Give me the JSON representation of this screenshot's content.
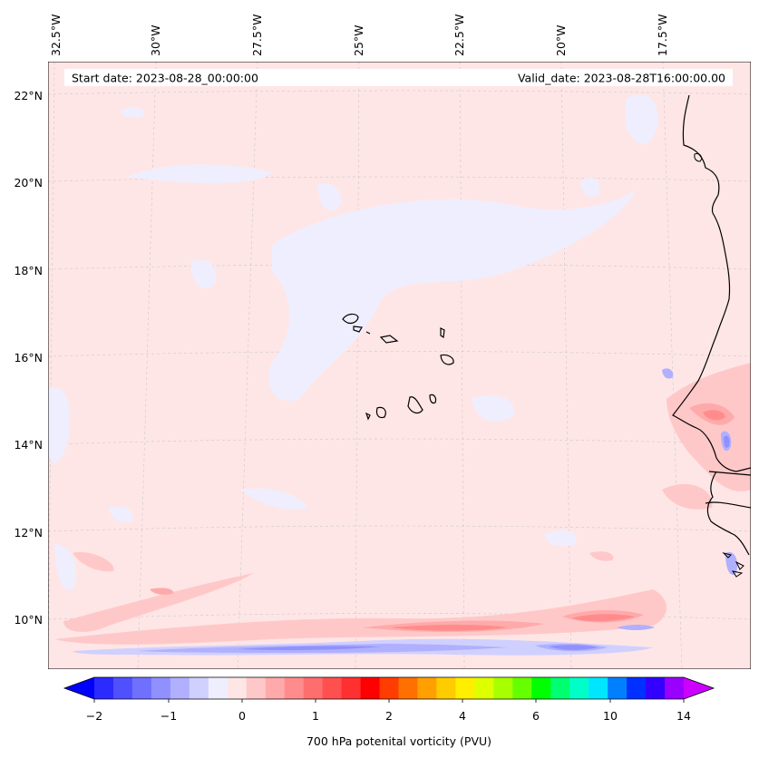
{
  "map": {
    "start_date": "Start date: 2023-08-28_00:00:00",
    "valid_date": "Valid_date: 2023-08-28T16:00:00.00",
    "lon_labels": [
      "32.5°W",
      "30°W",
      "27.5°W",
      "25°W",
      "22.5°W",
      "20°W",
      "17.5°W"
    ],
    "lat_labels": [
      "22°N",
      "20°N",
      "18°N",
      "16°N",
      "14°N",
      "12°N",
      "10°N"
    ],
    "background_color": "#ffe6e6",
    "low_pv_color": "#eeeeff",
    "coastline_color": "#000000"
  },
  "colorbar": {
    "label": "700 hPa potenital vorticity (PVU)",
    "tick_labels": [
      "−2",
      "−1",
      "0",
      "1",
      "2",
      "4",
      "6",
      "10",
      "14"
    ],
    "colors": [
      "#0000ff",
      "#2b2bff",
      "#5050ff",
      "#7070ff",
      "#9090ff",
      "#b0b0ff",
      "#d0d0ff",
      "#eeeeff",
      "#ffe6e6",
      "#ffc8c8",
      "#ffaaaa",
      "#ff8c8c",
      "#ff6e6e",
      "#ff5050",
      "#ff3030",
      "#ff0000",
      "#ff3d00",
      "#ff7000",
      "#ffa000",
      "#ffcc00",
      "#ffee00",
      "#ddff00",
      "#a8ff00",
      "#66ff00",
      "#00ff00",
      "#00ff70",
      "#00ffc8",
      "#00e6ff",
      "#0080ff",
      "#0030ff",
      "#3300ff",
      "#9900ff",
      "#cc00ff"
    ]
  }
}
